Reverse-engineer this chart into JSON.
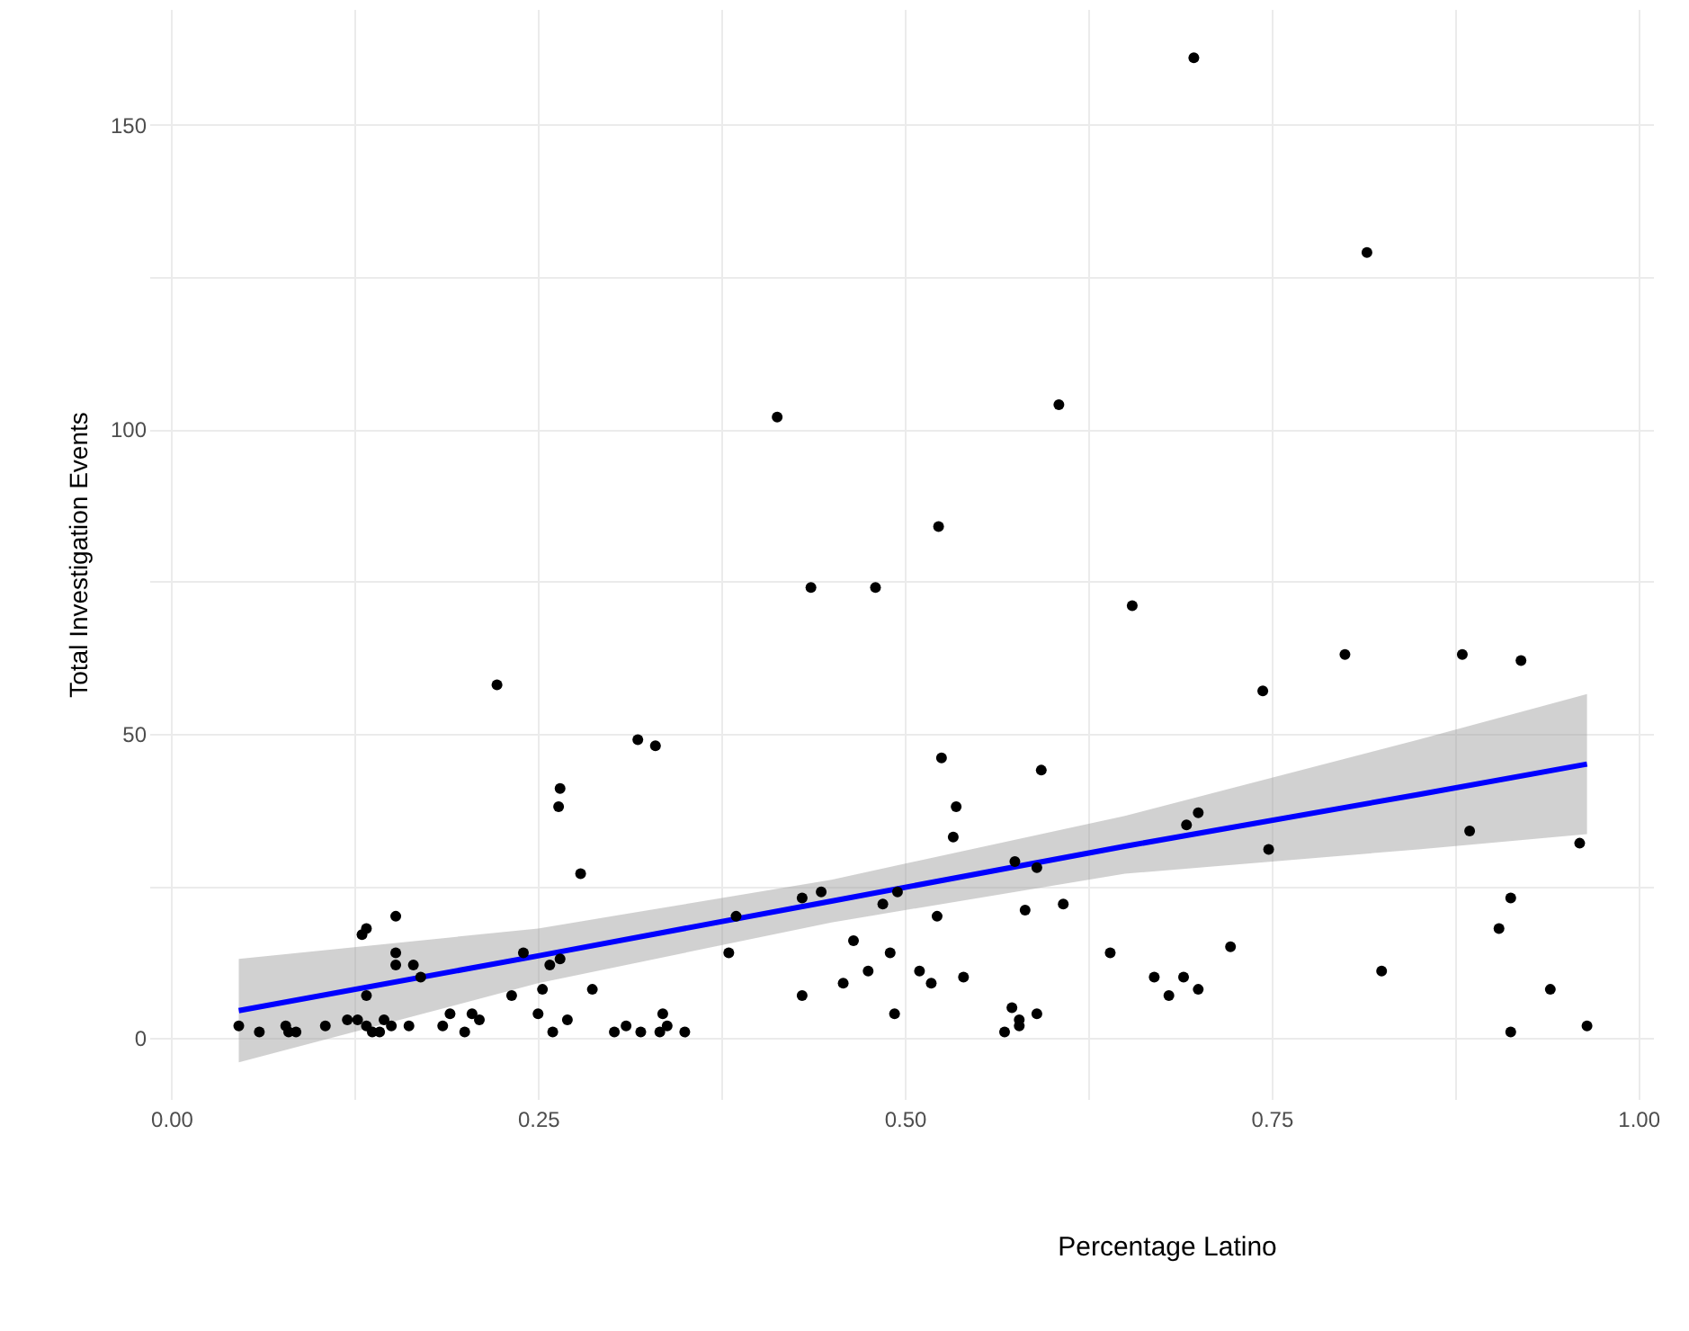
{
  "chart_data": {
    "type": "scatter",
    "annotations": [
      "Percentage Latino"
    ],
    "ylabel": "Total Investigation Events",
    "xlim": [
      -0.015,
      1.01
    ],
    "ylim": [
      -10,
      169
    ],
    "xticks": [
      {
        "value": 0,
        "label": "0.00"
      },
      {
        "value": 0.125,
        "label": null
      },
      {
        "value": 0.25,
        "label": "0.25"
      },
      {
        "value": 0.375,
        "label": null
      },
      {
        "value": 0.5,
        "label": "0.50"
      },
      {
        "value": 0.625,
        "label": null
      },
      {
        "value": 0.75,
        "label": "0.75"
      },
      {
        "value": 0.875,
        "label": null
      },
      {
        "value": 1,
        "label": "1.00"
      }
    ],
    "yticks": [
      0,
      {
        "value": 25,
        "label": null
      },
      50,
      {
        "value": 75,
        "label": null
      },
      100,
      {
        "value": 125,
        "label": null
      },
      150
    ],
    "grid": true,
    "series": [
      {
        "marker": "circle",
        "color": "#000000",
        "x": [
          0.046,
          0.06,
          0.078,
          0.08,
          0.085,
          0.105,
          0.12,
          0.127,
          0.133,
          0.137,
          0.142,
          0.145,
          0.15,
          0.133,
          0.13,
          0.133,
          0.153,
          0.153,
          0.153,
          0.165,
          0.17,
          0.162,
          0.185,
          0.19,
          0.2,
          0.205,
          0.21,
          0.222,
          0.232,
          0.24,
          0.253,
          0.25,
          0.26,
          0.258,
          0.265,
          0.265,
          0.264,
          0.279,
          0.27,
          0.287,
          0.302,
          0.31,
          0.318,
          0.33,
          0.32,
          0.333,
          0.335,
          0.338,
          0.35,
          0.38,
          0.385,
          0.413,
          0.436,
          0.43,
          0.43,
          0.443,
          0.465,
          0.458,
          0.48,
          0.475,
          0.485,
          0.49,
          0.493,
          0.495,
          0.51,
          0.518,
          0.523,
          0.525,
          0.522,
          0.535,
          0.533,
          0.54,
          0.568,
          0.573,
          0.578,
          0.578,
          0.575,
          0.59,
          0.582,
          0.59,
          0.593,
          0.605,
          0.608,
          0.64,
          0.655,
          0.67,
          0.68,
          0.69,
          0.692,
          0.7,
          0.7,
          0.697,
          0.722,
          0.744,
          0.748,
          0.8,
          0.815,
          0.825,
          0.88,
          0.885,
          0.913,
          0.913,
          0.905,
          0.92,
          0.94,
          0.96,
          0.965
        ],
        "values": [
          2,
          1,
          2,
          1,
          1,
          2,
          3,
          3,
          2,
          1,
          1,
          3,
          2,
          7,
          17,
          18,
          20,
          14,
          12,
          12,
          10,
          2,
          2,
          4,
          1,
          4,
          3,
          58,
          7,
          14,
          8,
          4,
          1,
          12,
          13,
          41,
          38,
          27,
          3,
          8,
          1,
          2,
          49,
          48,
          1,
          1,
          4,
          2,
          1,
          14,
          20,
          102,
          74,
          7,
          23,
          24,
          16,
          9,
          74,
          11,
          22,
          14,
          4,
          24,
          11,
          9,
          84,
          46,
          20,
          38,
          33,
          10,
          1,
          5,
          3,
          2,
          29,
          4,
          21,
          28,
          44,
          104,
          22,
          14,
          71,
          10,
          7,
          10,
          35,
          37,
          8,
          161,
          15,
          57,
          31,
          63,
          129,
          11,
          63,
          34,
          1,
          23,
          18,
          62,
          8,
          32,
          2
        ]
      },
      {
        "type": "line",
        "color": "#0000ff",
        "x": [
          0.046,
          0.25,
          0.45,
          0.65,
          0.85,
          0.965
        ],
        "values": [
          4.5,
          13.5,
          22.5,
          31.5,
          40,
          45
        ],
        "lower": [
          -4,
          9,
          19,
          27,
          31,
          33.5
        ],
        "upper": [
          13,
          18,
          26,
          36.5,
          49,
          56.5
        ]
      }
    ]
  }
}
